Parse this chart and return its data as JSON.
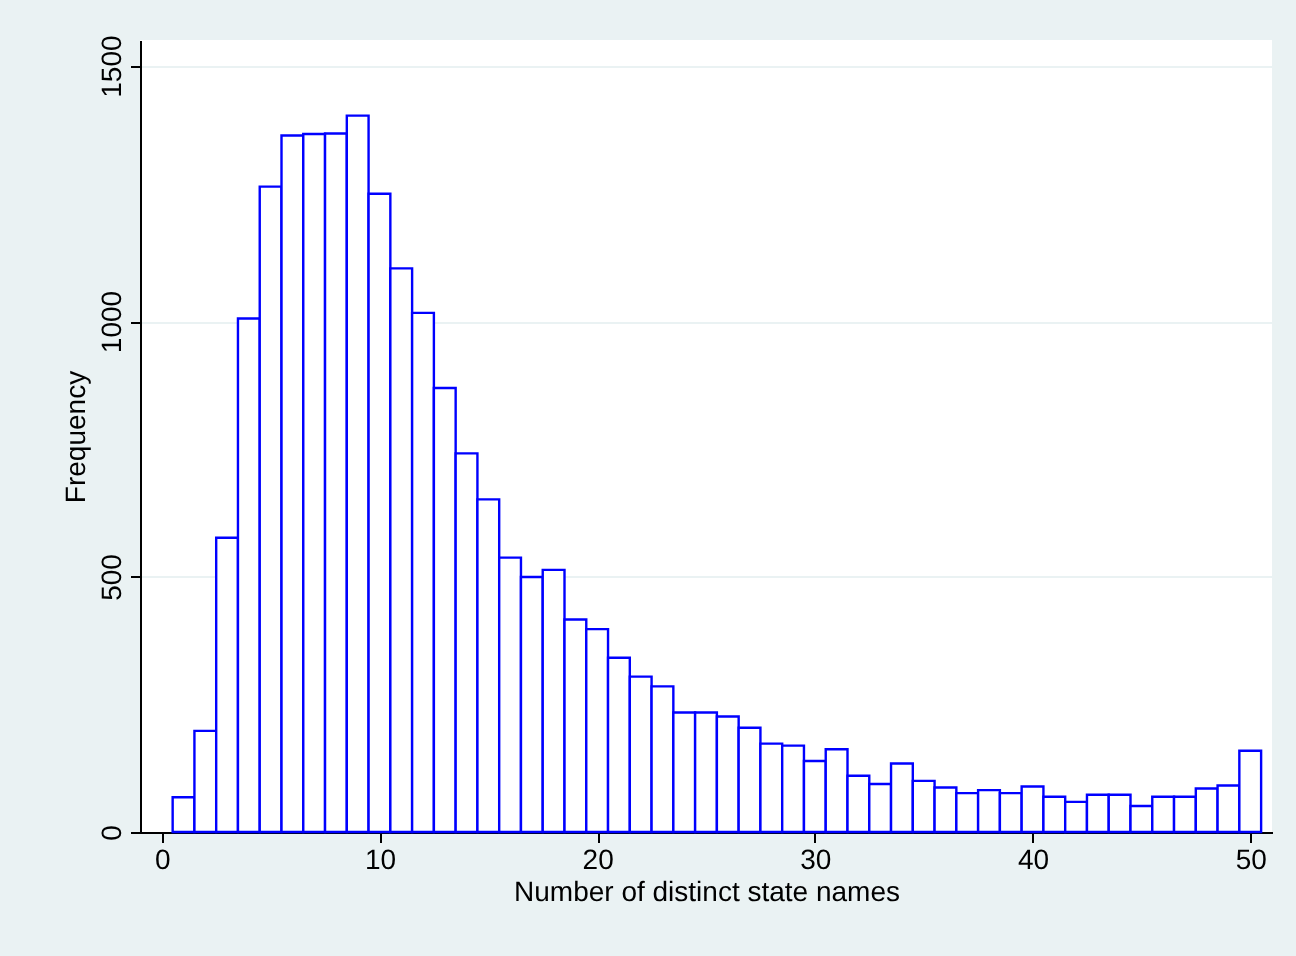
{
  "chart_data": {
    "type": "histogram",
    "xlabel": "Number of distinct state names",
    "ylabel": "Frequency",
    "bins": [
      0.5,
      1.5,
      2.5,
      3.5,
      4.5,
      5.5,
      6.5,
      7.5,
      8.5,
      9.5,
      10.5,
      11.5,
      12.5,
      13.5,
      14.5,
      15.5,
      16.5,
      17.5,
      18.5,
      19.5,
      20.5,
      21.5,
      22.5,
      23.5,
      24.5,
      25.5,
      26.5,
      27.5,
      28.5,
      29.5,
      30.5,
      31.5,
      32.5,
      33.5,
      34.5,
      35.5,
      36.5,
      37.5,
      38.5,
      39.5,
      40.5,
      41.5,
      42.5,
      43.5,
      44.5,
      45.5,
      46.5,
      47.5,
      48.5,
      49.5,
      50.5
    ],
    "values": [
      68,
      198,
      576,
      1005,
      1263,
      1363,
      1366,
      1367,
      1402,
      1249,
      1103,
      1016,
      869,
      741,
      651,
      537,
      499,
      513,
      416,
      397,
      341,
      304,
      285,
      234,
      234,
      226,
      204,
      173,
      169,
      139,
      162,
      110,
      94,
      134,
      100,
      87,
      76,
      82,
      76,
      89,
      69,
      59,
      73,
      73,
      51,
      69,
      69,
      85,
      91,
      159
    ],
    "color": "#0000ff",
    "xlim": [
      -1,
      51
    ],
    "xticks": [
      0,
      10,
      20,
      30,
      40,
      50
    ],
    "ylim": [
      0,
      1550
    ],
    "yticks": [
      0,
      500,
      1000,
      1500
    ],
    "grid": "y"
  }
}
